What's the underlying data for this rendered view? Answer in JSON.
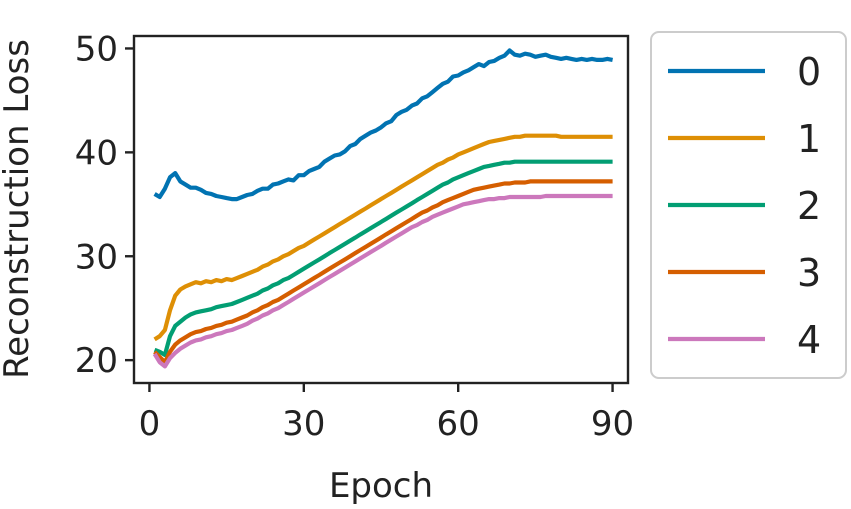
{
  "chart_data": {
    "type": "line",
    "title": "",
    "xlabel": "Epoch",
    "ylabel": "Reconstruction Loss",
    "xlim": [
      -3,
      93
    ],
    "ylim": [
      17.8,
      51.2
    ],
    "xticks": [
      0,
      30,
      60,
      90
    ],
    "yticks": [
      20,
      30,
      40,
      50
    ],
    "grid": false,
    "legend_position": "right, outside plot",
    "x": [
      1,
      2,
      3,
      4,
      5,
      6,
      7,
      8,
      9,
      10,
      11,
      12,
      13,
      14,
      15,
      16,
      17,
      18,
      19,
      20,
      21,
      22,
      23,
      24,
      25,
      26,
      27,
      28,
      29,
      30,
      31,
      32,
      33,
      34,
      35,
      36,
      37,
      38,
      39,
      40,
      41,
      42,
      43,
      44,
      45,
      46,
      47,
      48,
      49,
      50,
      51,
      52,
      53,
      54,
      55,
      56,
      57,
      58,
      59,
      60,
      61,
      62,
      63,
      64,
      65,
      66,
      67,
      68,
      69,
      70,
      71,
      72,
      73,
      74,
      75,
      76,
      77,
      78,
      79,
      80,
      81,
      82,
      83,
      84,
      85,
      86,
      87,
      88,
      89,
      90
    ],
    "series": [
      {
        "name": "0",
        "color": "#0173b2",
        "values": [
          36.0,
          35.7,
          36.5,
          37.6,
          38.0,
          37.2,
          36.9,
          36.6,
          36.6,
          36.4,
          36.1,
          36.0,
          35.8,
          35.7,
          35.6,
          35.5,
          35.5,
          35.7,
          35.9,
          36.0,
          36.3,
          36.5,
          36.5,
          36.9,
          37.0,
          37.2,
          37.4,
          37.3,
          37.8,
          37.8,
          38.2,
          38.4,
          38.6,
          39.1,
          39.4,
          39.7,
          39.8,
          40.1,
          40.6,
          40.8,
          41.3,
          41.6,
          41.9,
          42.1,
          42.4,
          42.8,
          43.0,
          43.6,
          43.9,
          44.1,
          44.5,
          44.7,
          45.2,
          45.4,
          45.8,
          46.2,
          46.6,
          46.8,
          47.3,
          47.4,
          47.7,
          47.9,
          48.2,
          48.5,
          48.3,
          48.7,
          48.8,
          49.1,
          49.3,
          49.8,
          49.4,
          49.3,
          49.5,
          49.4,
          49.2,
          49.3,
          49.4,
          49.2,
          49.1,
          49.0,
          49.1,
          49.0,
          48.9,
          49.0,
          48.9,
          49.0,
          48.9,
          48.9,
          49.0,
          48.9
        ]
      },
      {
        "name": "1",
        "color": "#de8f05",
        "values": [
          22.0,
          22.3,
          22.9,
          24.8,
          26.2,
          26.8,
          27.1,
          27.3,
          27.5,
          27.4,
          27.6,
          27.5,
          27.7,
          27.6,
          27.8,
          27.7,
          27.9,
          28.1,
          28.3,
          28.5,
          28.7,
          29.0,
          29.2,
          29.5,
          29.7,
          30.0,
          30.2,
          30.5,
          30.8,
          31.0,
          31.3,
          31.6,
          31.9,
          32.2,
          32.5,
          32.8,
          33.1,
          33.4,
          33.7,
          34.0,
          34.3,
          34.6,
          34.9,
          35.2,
          35.5,
          35.8,
          36.1,
          36.4,
          36.7,
          37.0,
          37.3,
          37.6,
          37.9,
          38.2,
          38.5,
          38.8,
          39.0,
          39.3,
          39.5,
          39.8,
          40.0,
          40.2,
          40.4,
          40.6,
          40.8,
          41.0,
          41.1,
          41.2,
          41.3,
          41.4,
          41.5,
          41.5,
          41.6,
          41.6,
          41.6,
          41.6,
          41.6,
          41.6,
          41.6,
          41.5,
          41.5,
          41.5,
          41.5,
          41.5,
          41.5,
          41.5,
          41.5,
          41.5,
          41.5,
          41.5
        ]
      },
      {
        "name": "2",
        "color": "#029e73",
        "values": [
          21.0,
          20.8,
          20.5,
          22.3,
          23.3,
          23.7,
          24.1,
          24.4,
          24.6,
          24.7,
          24.8,
          24.9,
          25.1,
          25.2,
          25.3,
          25.4,
          25.6,
          25.8,
          26.0,
          26.2,
          26.4,
          26.7,
          26.9,
          27.2,
          27.4,
          27.7,
          27.9,
          28.2,
          28.5,
          28.8,
          29.1,
          29.4,
          29.7,
          30.0,
          30.3,
          30.6,
          30.9,
          31.2,
          31.5,
          31.8,
          32.1,
          32.4,
          32.7,
          33.0,
          33.3,
          33.6,
          33.9,
          34.2,
          34.5,
          34.8,
          35.1,
          35.4,
          35.7,
          36.0,
          36.3,
          36.6,
          36.9,
          37.1,
          37.4,
          37.6,
          37.8,
          38.0,
          38.2,
          38.4,
          38.6,
          38.7,
          38.8,
          38.9,
          39.0,
          39.0,
          39.1,
          39.1,
          39.1,
          39.1,
          39.1,
          39.1,
          39.1,
          39.1,
          39.1,
          39.1,
          39.1,
          39.1,
          39.1,
          39.1,
          39.1,
          39.1,
          39.1,
          39.1,
          39.1,
          39.1
        ]
      },
      {
        "name": "3",
        "color": "#d55e00",
        "values": [
          20.8,
          20.3,
          19.8,
          20.8,
          21.5,
          21.9,
          22.2,
          22.5,
          22.7,
          22.8,
          23.0,
          23.1,
          23.3,
          23.4,
          23.6,
          23.7,
          23.9,
          24.1,
          24.3,
          24.6,
          24.8,
          25.1,
          25.3,
          25.6,
          25.8,
          26.1,
          26.4,
          26.7,
          27.0,
          27.3,
          27.6,
          27.9,
          28.2,
          28.5,
          28.8,
          29.1,
          29.4,
          29.7,
          30.0,
          30.3,
          30.6,
          30.9,
          31.2,
          31.5,
          31.8,
          32.1,
          32.4,
          32.7,
          33.0,
          33.3,
          33.6,
          33.9,
          34.2,
          34.4,
          34.7,
          34.9,
          35.2,
          35.4,
          35.6,
          35.8,
          36.0,
          36.2,
          36.4,
          36.5,
          36.6,
          36.7,
          36.8,
          36.9,
          37.0,
          37.0,
          37.1,
          37.1,
          37.1,
          37.2,
          37.2,
          37.2,
          37.2,
          37.2,
          37.2,
          37.2,
          37.2,
          37.2,
          37.2,
          37.2,
          37.2,
          37.2,
          37.2,
          37.2,
          37.2,
          37.2
        ]
      },
      {
        "name": "4",
        "color": "#cc78bc",
        "values": [
          20.6,
          19.8,
          19.4,
          20.2,
          20.7,
          21.1,
          21.4,
          21.7,
          21.9,
          22.0,
          22.2,
          22.3,
          22.5,
          22.6,
          22.8,
          22.9,
          23.1,
          23.3,
          23.5,
          23.8,
          24.0,
          24.3,
          24.5,
          24.8,
          25.0,
          25.3,
          25.6,
          25.9,
          26.2,
          26.5,
          26.8,
          27.1,
          27.4,
          27.7,
          28.0,
          28.3,
          28.6,
          28.9,
          29.2,
          29.5,
          29.8,
          30.1,
          30.4,
          30.7,
          31.0,
          31.3,
          31.6,
          31.9,
          32.2,
          32.5,
          32.8,
          33.0,
          33.3,
          33.5,
          33.8,
          34.0,
          34.2,
          34.4,
          34.6,
          34.8,
          35.0,
          35.1,
          35.2,
          35.3,
          35.4,
          35.5,
          35.5,
          35.6,
          35.6,
          35.7,
          35.7,
          35.7,
          35.7,
          35.7,
          35.7,
          35.7,
          35.8,
          35.8,
          35.8,
          35.8,
          35.8,
          35.8,
          35.8,
          35.8,
          35.8,
          35.8,
          35.8,
          35.8,
          35.8,
          35.8
        ]
      }
    ]
  }
}
